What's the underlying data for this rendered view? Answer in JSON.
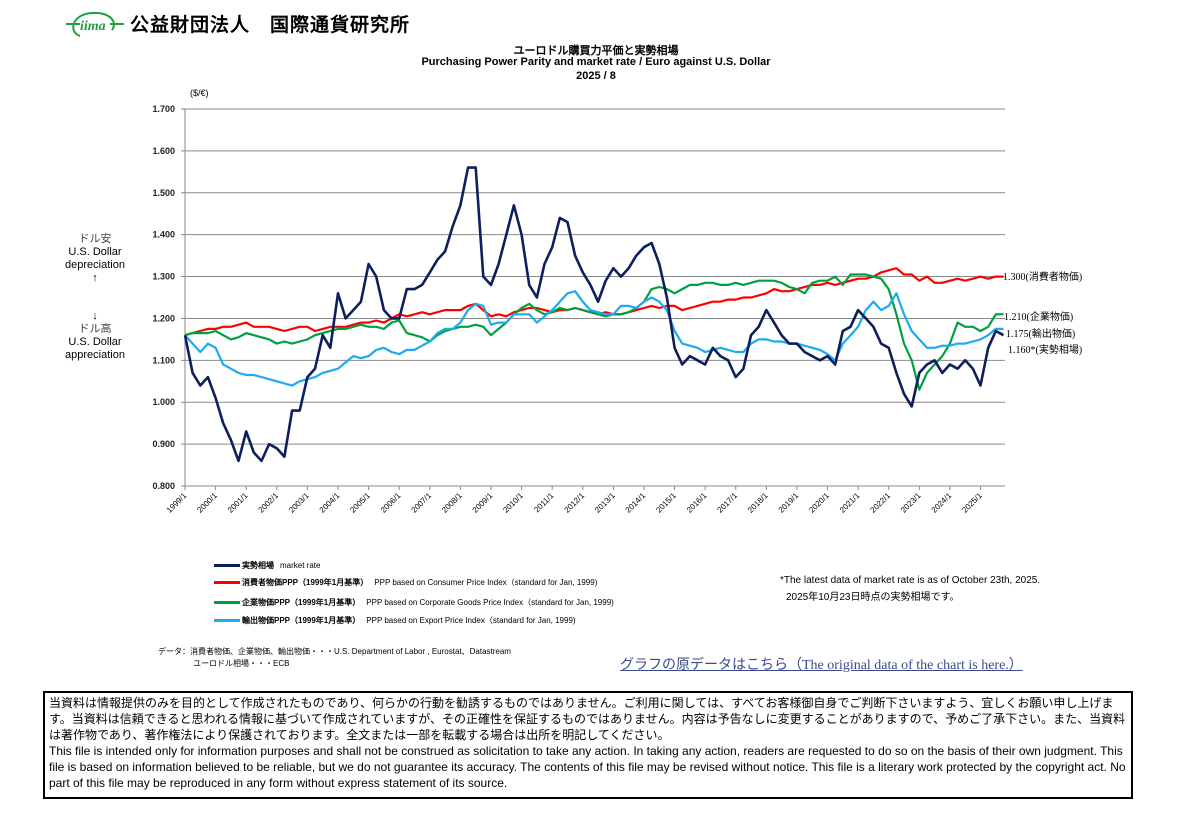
{
  "header": {
    "logo_text": "iima",
    "org_name": "公益財団法人　国際通貨研究所"
  },
  "chart_data": {
    "type": "line",
    "title_jp": "ユーロドル購買力平価と実勢相場",
    "title": "Purchasing Power Parity and market rate / Euro against  U.S. Dollar",
    "subtitle": "2025 / 8",
    "ylabel": "($/€)",
    "ylim": [
      0.8,
      1.7
    ],
    "yticks": [
      "0.800",
      "0.900",
      "1.000",
      "1.100",
      "1.200",
      "1.300",
      "1.400",
      "1.500",
      "1.600",
      "1.700"
    ],
    "xticks": [
      "1999/1",
      "2000/1",
      "2001/1",
      "2002/1",
      "2003/1",
      "2004/1",
      "2005/1",
      "2006/1",
      "2007/1",
      "2008/1",
      "2009/1",
      "2010/1",
      "2011/1",
      "2012/1",
      "2013/1",
      "2014/1",
      "2015/1",
      "2016/1",
      "2017/1",
      "2018/1",
      "2019/1",
      "2020/1",
      "2021/1",
      "2022/1",
      "2023/1",
      "2024/1",
      "2025/1"
    ],
    "grid": true,
    "x_start": "1999/1",
    "x_step_months": 3,
    "series": [
      {
        "name": "実勢相場　market rate",
        "color": "#0d1f5c",
        "end_label": "1.160*(実勢相場)",
        "values": [
          1.16,
          1.07,
          1.04,
          1.06,
          1.01,
          0.95,
          0.91,
          0.86,
          0.93,
          0.88,
          0.86,
          0.9,
          0.89,
          0.87,
          0.98,
          0.98,
          1.06,
          1.08,
          1.16,
          1.13,
          1.26,
          1.2,
          1.22,
          1.24,
          1.33,
          1.3,
          1.22,
          1.2,
          1.2,
          1.27,
          1.27,
          1.28,
          1.31,
          1.34,
          1.36,
          1.42,
          1.47,
          1.56,
          1.56,
          1.3,
          1.28,
          1.33,
          1.4,
          1.47,
          1.4,
          1.28,
          1.25,
          1.33,
          1.37,
          1.44,
          1.43,
          1.35,
          1.31,
          1.28,
          1.24,
          1.29,
          1.32,
          1.3,
          1.32,
          1.35,
          1.37,
          1.38,
          1.33,
          1.25,
          1.13,
          1.09,
          1.11,
          1.1,
          1.09,
          1.13,
          1.11,
          1.1,
          1.06,
          1.08,
          1.16,
          1.18,
          1.22,
          1.19,
          1.16,
          1.14,
          1.14,
          1.12,
          1.11,
          1.1,
          1.11,
          1.09,
          1.17,
          1.18,
          1.22,
          1.2,
          1.18,
          1.14,
          1.13,
          1.07,
          1.02,
          0.99,
          1.07,
          1.09,
          1.1,
          1.07,
          1.09,
          1.08,
          1.1,
          1.08,
          1.04,
          1.13,
          1.17,
          1.16
        ]
      },
      {
        "name": "消費者物価PPP（1999年1月基準）　PPP based on Consumer Price Index（standard for Jan, 1999)",
        "color": "#ff0000",
        "end_label": "1.300(消費者物価)",
        "values": [
          1.16,
          1.165,
          1.17,
          1.175,
          1.175,
          1.18,
          1.18,
          1.185,
          1.19,
          1.18,
          1.18,
          1.18,
          1.175,
          1.17,
          1.175,
          1.18,
          1.18,
          1.17,
          1.175,
          1.18,
          1.18,
          1.18,
          1.185,
          1.19,
          1.19,
          1.195,
          1.19,
          1.2,
          1.21,
          1.205,
          1.21,
          1.215,
          1.21,
          1.215,
          1.22,
          1.22,
          1.22,
          1.23,
          1.235,
          1.22,
          1.205,
          1.21,
          1.205,
          1.215,
          1.22,
          1.225,
          1.225,
          1.22,
          1.215,
          1.22,
          1.22,
          1.225,
          1.22,
          1.215,
          1.21,
          1.215,
          1.21,
          1.21,
          1.215,
          1.22,
          1.225,
          1.23,
          1.225,
          1.23,
          1.23,
          1.22,
          1.225,
          1.23,
          1.235,
          1.24,
          1.24,
          1.245,
          1.245,
          1.25,
          1.25,
          1.255,
          1.26,
          1.27,
          1.265,
          1.265,
          1.27,
          1.275,
          1.28,
          1.28,
          1.285,
          1.28,
          1.285,
          1.29,
          1.295,
          1.295,
          1.3,
          1.31,
          1.315,
          1.32,
          1.305,
          1.305,
          1.29,
          1.3,
          1.285,
          1.285,
          1.29,
          1.295,
          1.29,
          1.295,
          1.3,
          1.295,
          1.3,
          1.3
        ]
      },
      {
        "name": "企業物価PPP（1999年1月基準）　PPP based on Corporate Goods Price Index（standard for Jan, 1999)",
        "color": "#00a040",
        "end_label": "1.210(企業物価)",
        "values": [
          1.16,
          1.165,
          1.165,
          1.165,
          1.17,
          1.16,
          1.15,
          1.155,
          1.165,
          1.16,
          1.155,
          1.15,
          1.14,
          1.145,
          1.14,
          1.145,
          1.15,
          1.16,
          1.165,
          1.17,
          1.175,
          1.175,
          1.18,
          1.185,
          1.18,
          1.18,
          1.175,
          1.19,
          1.195,
          1.165,
          1.16,
          1.155,
          1.145,
          1.16,
          1.17,
          1.175,
          1.18,
          1.18,
          1.185,
          1.18,
          1.16,
          1.175,
          1.19,
          1.21,
          1.225,
          1.235,
          1.22,
          1.21,
          1.215,
          1.225,
          1.22,
          1.225,
          1.22,
          1.215,
          1.21,
          1.205,
          1.21,
          1.21,
          1.215,
          1.225,
          1.24,
          1.27,
          1.275,
          1.27,
          1.26,
          1.27,
          1.28,
          1.28,
          1.285,
          1.285,
          1.28,
          1.28,
          1.285,
          1.28,
          1.285,
          1.29,
          1.29,
          1.29,
          1.285,
          1.275,
          1.27,
          1.26,
          1.285,
          1.29,
          1.29,
          1.3,
          1.28,
          1.305,
          1.305,
          1.305,
          1.3,
          1.295,
          1.27,
          1.21,
          1.14,
          1.1,
          1.03,
          1.07,
          1.09,
          1.11,
          1.14,
          1.19,
          1.18,
          1.18,
          1.17,
          1.18,
          1.21,
          1.21
        ]
      },
      {
        "name": "輸出物価PPP（1999年1月基準）　PPP based on Export Price Index（standard for Jan, 1999)",
        "color": "#1eaaf0",
        "end_label": "1.175(輸出物価)",
        "values": [
          1.16,
          1.14,
          1.12,
          1.14,
          1.13,
          1.09,
          1.08,
          1.07,
          1.065,
          1.065,
          1.06,
          1.055,
          1.05,
          1.045,
          1.04,
          1.05,
          1.055,
          1.06,
          1.07,
          1.075,
          1.08,
          1.095,
          1.11,
          1.105,
          1.11,
          1.125,
          1.13,
          1.12,
          1.115,
          1.125,
          1.125,
          1.135,
          1.145,
          1.165,
          1.175,
          1.175,
          1.19,
          1.22,
          1.235,
          1.23,
          1.185,
          1.19,
          1.19,
          1.21,
          1.21,
          1.21,
          1.19,
          1.205,
          1.22,
          1.24,
          1.26,
          1.265,
          1.24,
          1.22,
          1.215,
          1.21,
          1.21,
          1.23,
          1.23,
          1.225,
          1.24,
          1.25,
          1.24,
          1.22,
          1.17,
          1.14,
          1.135,
          1.13,
          1.12,
          1.125,
          1.13,
          1.125,
          1.12,
          1.12,
          1.14,
          1.15,
          1.15,
          1.145,
          1.145,
          1.14,
          1.14,
          1.135,
          1.13,
          1.125,
          1.115,
          1.1,
          1.14,
          1.16,
          1.18,
          1.22,
          1.24,
          1.22,
          1.23,
          1.26,
          1.21,
          1.17,
          1.15,
          1.13,
          1.13,
          1.135,
          1.135,
          1.14,
          1.14,
          1.145,
          1.15,
          1.16,
          1.175,
          1.175
        ]
      }
    ],
    "annotations": {
      "up_jp": "ドル安",
      "up_en1": "U.S. Dollar",
      "up_en2": "depreciation",
      "up_arrow": "↑",
      "down_arrow": "↓",
      "down_jp": "ドル高",
      "down_en1": "U.S. Dollar",
      "down_en2": "appreciation"
    }
  },
  "legend": [
    {
      "jp": "実勢相場",
      "en": "market rate"
    },
    {
      "jp": "消費者物価PPP（1999年1月基準）",
      "en": "PPP based on Consumer Price Index（standard for Jan, 1999)"
    },
    {
      "jp": "企業物価PPP（1999年1月基準）",
      "en": "PPP based on Corporate Goods Price Index（standard for Jan, 1999)"
    },
    {
      "jp": "輸出物価PPP（1999年1月基準）",
      "en": "PPP based on Export Price Index（standard for Jan, 1999)"
    }
  ],
  "notes": {
    "latest_en": "*The latest data of market rate is as of October 23th, 2025.",
    "latest_jp": "2025年10月23日時点の実勢相場です。"
  },
  "sources": {
    "line1": "データ：消費者物価、企業物価、輸出物価・・・U.S. Department of Labor , Eurostat、Datastream",
    "line2": "ユーロドル相場・・・ECB"
  },
  "link_text": "グラフの原データはこちら（The original data of the chart is here.）",
  "disclaimer": {
    "jp": "当資料は情報提供のみを目的として作成されたものであり、何らかの行動を勧誘するものではありません。ご利用に関しては、すべてお客様御自身でご判断下さいますよう、宜しくお願い申し上げます。当資料は信頼できると思われる情報に基づいて作成されていますが、その正確性を保証するものではありません。内容は予告なしに変更することがありますので、予めご了承下さい。また、当資料は著作物であり、著作権法により保護されております。全文または一部を転載する場合は出所を明記してください。",
    "en": "This file is intended only for information purposes and shall not be construed as solicitation to take any action. In taking any action, readers are requested to do so on the basis of their own judgment. This file is based on information believed to be reliable, but we do not guarantee its accuracy. The contents of this file may be revised without notice. This file is a literary work protected by the copyright act. No part of this file may be reproduced in any form without express statement of its source."
  }
}
